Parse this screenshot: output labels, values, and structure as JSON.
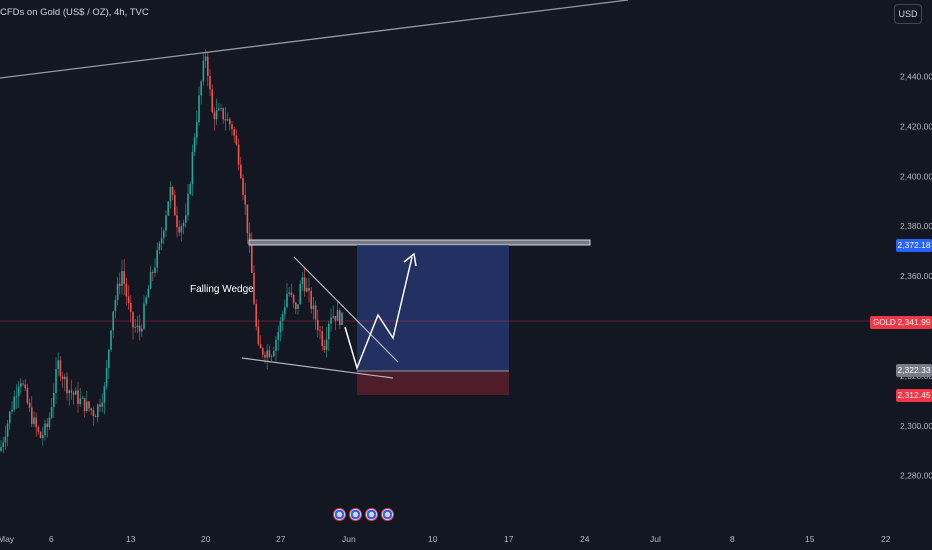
{
  "header": {
    "title": "CFDs on Gold (US$ / OZ), 4h, TVC",
    "currency_button": "USD"
  },
  "annotations": {
    "pattern_label": "Falling Wedge"
  },
  "price_labels": {
    "target": "2,372.18",
    "last": "2,341.99",
    "entry": "2,322.33",
    "stop": "2,312.45",
    "symbol_tag": "GOLD"
  },
  "colors": {
    "background": "#131722",
    "up": "#26a69a",
    "down": "#ef5350",
    "target_zone": "#2a3a78",
    "stop_zone": "#5b1f2a",
    "last_price": "#f23645",
    "target_label": "#2962ff",
    "entry_label": "#787b86"
  },
  "chart_data": {
    "type": "candlestick",
    "title": "CFDs on Gold (US$ / OZ), 4h, TVC",
    "y_axis": {
      "ticks": [
        "2,440.00",
        "2,420.00",
        "2,400.00",
        "2,380.00",
        "2,360.00",
        "2,340.00",
        "2,320.00",
        "2,300.00",
        "2,280.00"
      ],
      "tick_values": [
        2440,
        2420,
        2400,
        2380,
        2360,
        2340,
        2320,
        2300,
        2280
      ],
      "range": [
        2270,
        2470
      ]
    },
    "x_axis": {
      "ticks": [
        "May",
        "6",
        "13",
        "20",
        "27",
        "Jun",
        "10",
        "17",
        "24",
        "Jul",
        "8",
        "15",
        "22"
      ]
    },
    "key_levels": {
      "resistance": 2373,
      "target": 2372.18,
      "last": 2341.99,
      "entry": 2322.33,
      "stop": 2312.45,
      "peak": 2450
    },
    "grid": false,
    "legend": "none"
  }
}
